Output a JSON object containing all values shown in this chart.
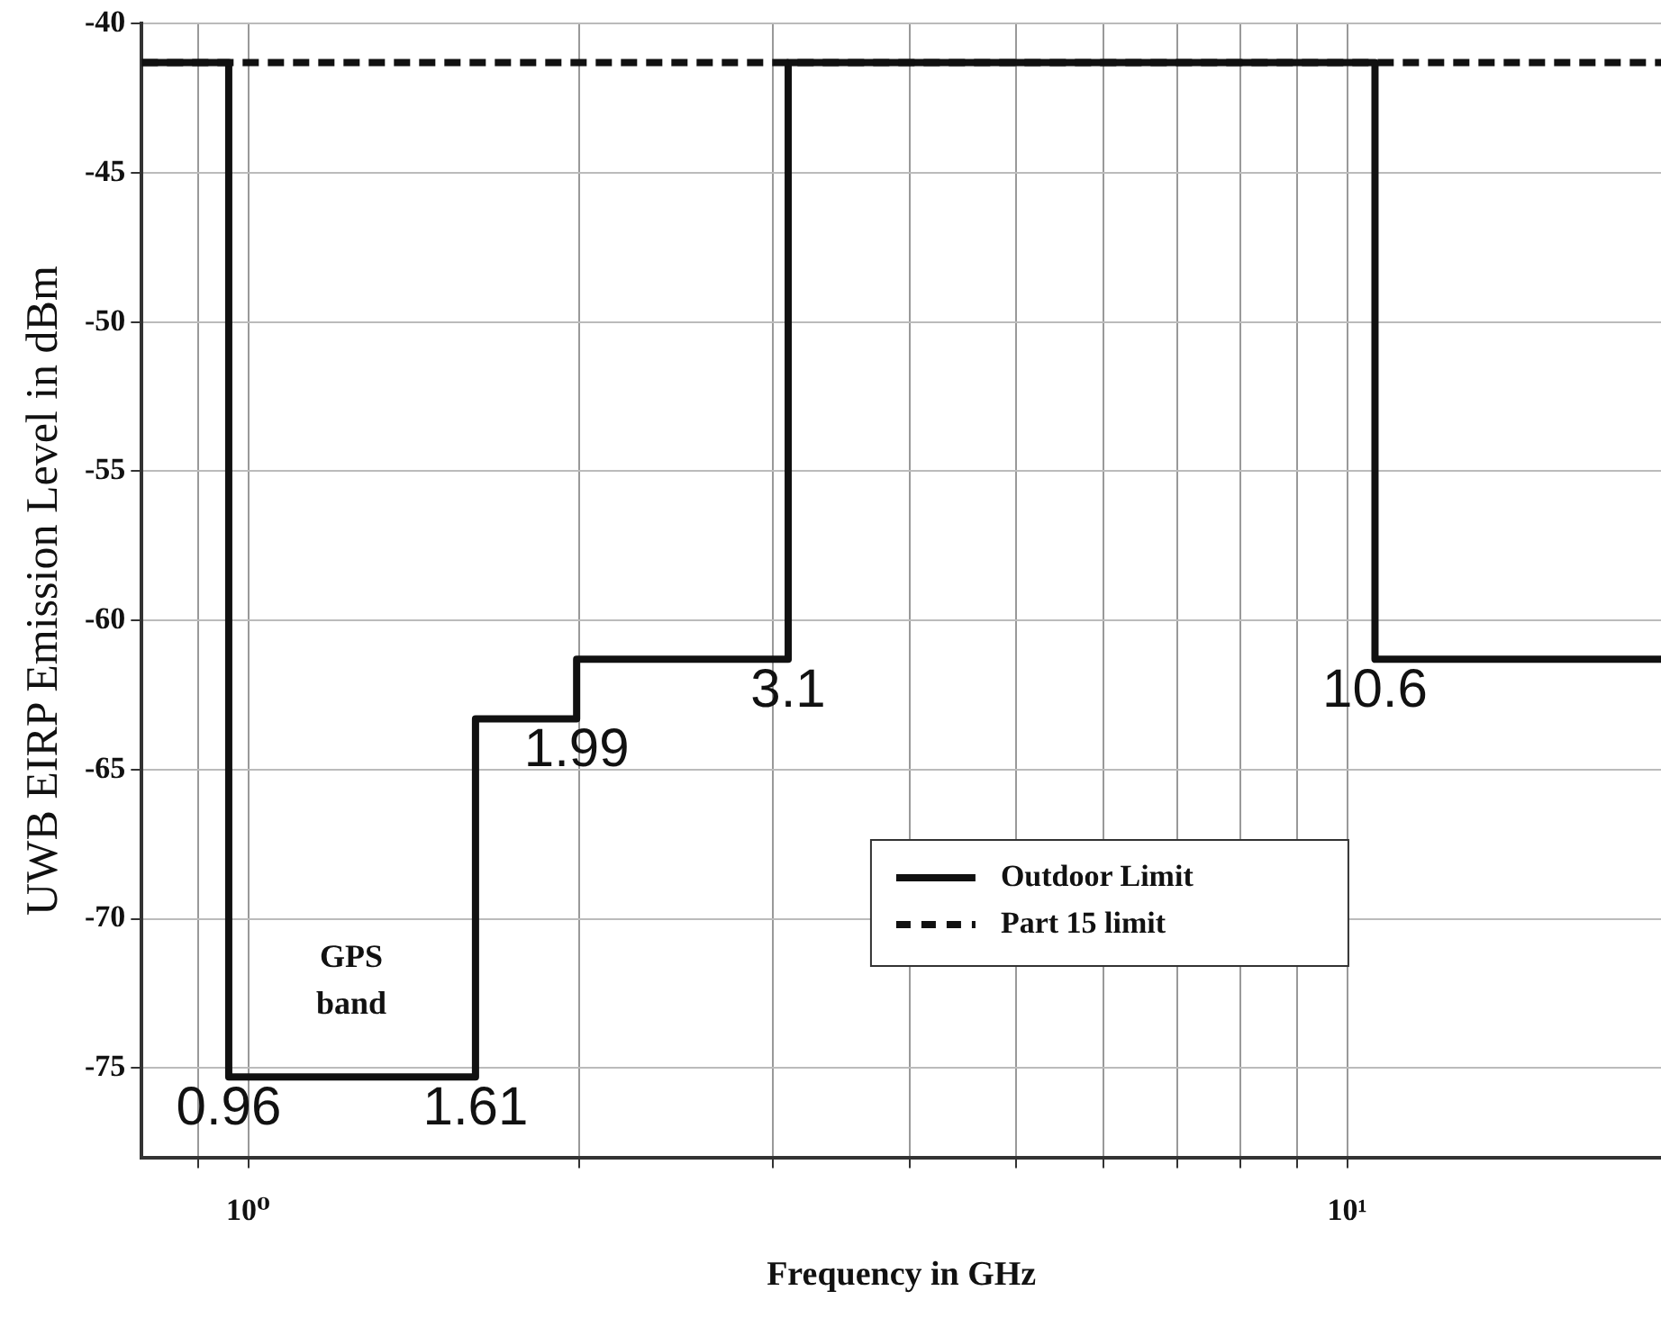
{
  "chart_data": {
    "type": "step",
    "xlabel": "Frequency in GHz",
    "ylabel": "UWB EIRP Emission Level in dBm",
    "log": "x",
    "xlim": [
      0.8,
      19.3
    ],
    "ylim": [
      -78,
      -40
    ],
    "xticks": [
      {
        "value": 0.9,
        "label": null
      },
      {
        "value": 1,
        "label": "10⁰"
      },
      {
        "value": 2,
        "label": null
      },
      {
        "value": 3,
        "label": null
      },
      {
        "value": 4,
        "label": null
      },
      {
        "value": 5,
        "label": null
      },
      {
        "value": 6,
        "label": null
      },
      {
        "value": 7,
        "label": null
      },
      {
        "value": 8,
        "label": null
      },
      {
        "value": 9,
        "label": null
      },
      {
        "value": 10,
        "label": "10¹"
      }
    ],
    "yticks": [
      -40,
      -45,
      -50,
      -55,
      -60,
      -65,
      -70,
      -75
    ],
    "grid": true,
    "legend": "center",
    "line_style": "solid",
    "marker": "none",
    "series": [
      {
        "name": "Part 15 limit",
        "type": "line",
        "line_style": "dashed",
        "color": "#111111",
        "x": [
          0.8,
          19.3
        ],
        "values": [
          -41.3,
          -41.3
        ]
      },
      {
        "name": "Outdoor Limit",
        "color": "#111111",
        "x": [
          0.8,
          0.96,
          1.61,
          1.99,
          3.1,
          10.6,
          19.3
        ],
        "values": [
          -41.3,
          -75.3,
          -63.3,
          -61.3,
          -41.3,
          -61.3,
          -61.3
        ]
      }
    ],
    "annotations": [
      {
        "text": "0.96",
        "x": 0.96,
        "y": -75.3
      },
      {
        "text": "1.61",
        "x": 1.61,
        "y": -75.3
      },
      {
        "text": "1.99",
        "x": 1.99,
        "y": -63.3
      },
      {
        "text": "3.1",
        "x": 3.1,
        "y": -61.3
      },
      {
        "text": "10.6",
        "x": 10.6,
        "y": -61.3
      },
      "GPS band"
    ]
  }
}
